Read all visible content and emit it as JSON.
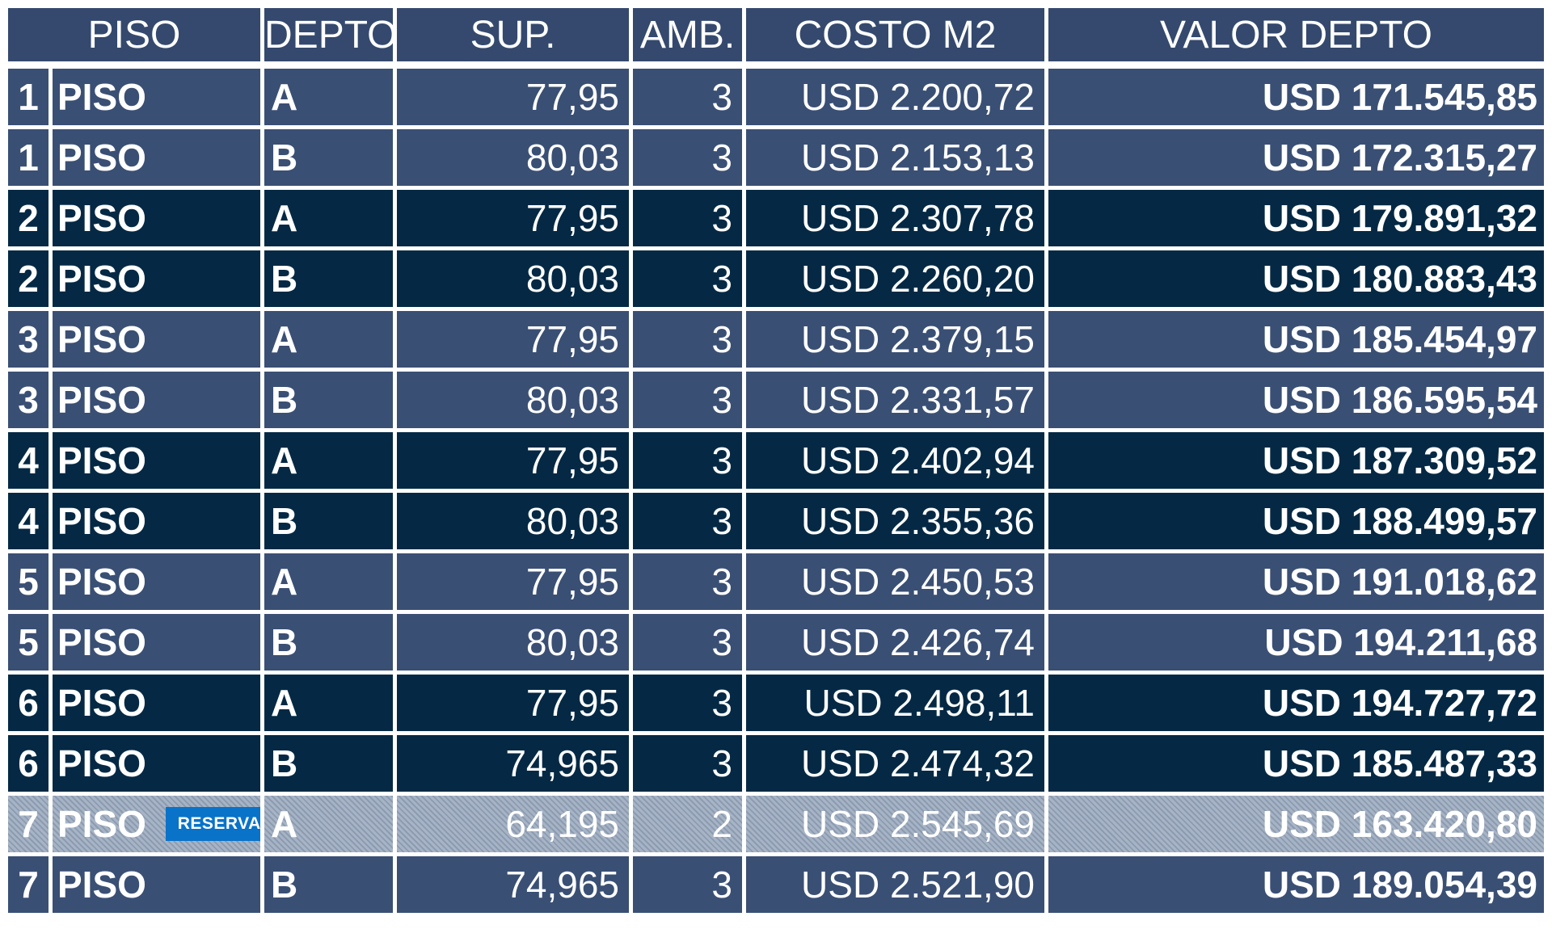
{
  "headers": [
    "PISO",
    "DEPTO",
    "SUP.",
    "AMB.",
    "COSTO M2",
    "VALOR DEPTO"
  ],
  "rows": [
    {
      "num": "1",
      "piso": "PISO",
      "depto": "A",
      "sup": "77,95",
      "amb": "3",
      "costo": "USD 2.200,72",
      "valor": "USD 171.545,85",
      "shade": "light"
    },
    {
      "num": "1",
      "piso": "PISO",
      "depto": "B",
      "sup": "80,03",
      "amb": "3",
      "costo": "USD 2.153,13",
      "valor": "USD 172.315,27",
      "shade": "light"
    },
    {
      "num": "2",
      "piso": "PISO",
      "depto": "A",
      "sup": "77,95",
      "amb": "3",
      "costo": "USD 2.307,78",
      "valor": "USD 179.891,32",
      "shade": "dark"
    },
    {
      "num": "2",
      "piso": "PISO",
      "depto": "B",
      "sup": "80,03",
      "amb": "3",
      "costo": "USD 2.260,20",
      "valor": "USD 180.883,43",
      "shade": "dark"
    },
    {
      "num": "3",
      "piso": "PISO",
      "depto": "A",
      "sup": "77,95",
      "amb": "3",
      "costo": "USD 2.379,15",
      "valor": "USD 185.454,97",
      "shade": "light"
    },
    {
      "num": "3",
      "piso": "PISO",
      "depto": "B",
      "sup": "80,03",
      "amb": "3",
      "costo": "USD 2.331,57",
      "valor": "USD 186.595,54",
      "shade": "light"
    },
    {
      "num": "4",
      "piso": "PISO",
      "depto": "A",
      "sup": "77,95",
      "amb": "3",
      "costo": "USD 2.402,94",
      "valor": "USD 187.309,52",
      "shade": "dark"
    },
    {
      "num": "4",
      "piso": "PISO",
      "depto": "B",
      "sup": "80,03",
      "amb": "3",
      "costo": "USD 2.355,36",
      "valor": "USD 188.499,57",
      "shade": "dark"
    },
    {
      "num": "5",
      "piso": "PISO",
      "depto": "A",
      "sup": "77,95",
      "amb": "3",
      "costo": "USD 2.450,53",
      "valor": "USD 191.018,62",
      "shade": "light"
    },
    {
      "num": "5",
      "piso": "PISO",
      "depto": "B",
      "sup": "80,03",
      "amb": "3",
      "costo": "USD 2.426,74",
      "valor": "USD 194.211,68",
      "shade": "light"
    },
    {
      "num": "6",
      "piso": "PISO",
      "depto": "A",
      "sup": "77,95",
      "amb": "3",
      "costo": "USD 2.498,11",
      "valor": "USD 194.727,72",
      "shade": "dark"
    },
    {
      "num": "6",
      "piso": "PISO",
      "depto": "B",
      "sup": "74,965",
      "amb": "3",
      "costo": "USD 2.474,32",
      "valor": "USD 185.487,33",
      "shade": "dark"
    },
    {
      "num": "7",
      "piso": "PISO",
      "depto": "A",
      "sup": "64,195",
      "amb": "2",
      "costo": "USD 2.545,69",
      "valor": "USD 163.420,80",
      "shade": "reserved",
      "badge": "RESERVADO"
    },
    {
      "num": "7",
      "piso": "PISO",
      "depto": "B",
      "sup": "74,965",
      "amb": "3",
      "costo": "USD 2.521,90",
      "valor": "USD 189.054,39",
      "shade": "light"
    }
  ],
  "colors": {
    "row_light": "#3a4f74",
    "row_dark": "#052944",
    "header": "#34496d",
    "badge": "#0873c9"
  }
}
